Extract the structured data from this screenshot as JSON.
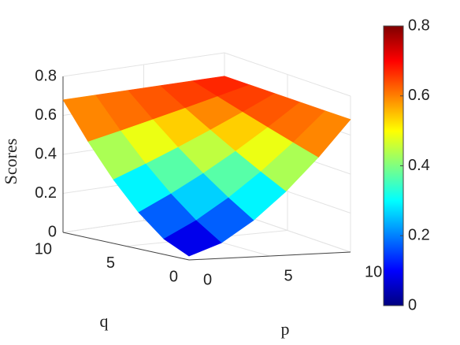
{
  "chart_data": {
    "type": "surface",
    "zlabel": "Scores",
    "xlabel": "p",
    "ylabel": "q",
    "x": [
      0,
      2,
      4,
      6,
      8,
      10
    ],
    "y": [
      0,
      2,
      4,
      6,
      8,
      10
    ],
    "z": [
      [
        0.02,
        0.079,
        0.187,
        0.327,
        0.493,
        0.68
      ],
      [
        0.079,
        0.163,
        0.268,
        0.39,
        0.528,
        0.68
      ],
      [
        0.187,
        0.268,
        0.358,
        0.457,
        0.565,
        0.68
      ],
      [
        0.327,
        0.39,
        0.457,
        0.528,
        0.602,
        0.68
      ],
      [
        0.493,
        0.528,
        0.565,
        0.602,
        0.641,
        0.68
      ],
      [
        0.68,
        0.68,
        0.68,
        0.68,
        0.68,
        0.68
      ]
    ],
    "xlim": [
      0,
      10
    ],
    "ylim": [
      0,
      10
    ],
    "zlim": [
      0,
      0.8
    ],
    "xticks": [
      0,
      5,
      10
    ],
    "yticks": [
      0,
      5,
      10
    ],
    "zticks": [
      0,
      0.2,
      0.4,
      0.6,
      0.8
    ],
    "colormap": "jet",
    "grid": true,
    "colorbar": {
      "clim": [
        0,
        0.8
      ],
      "ticks": [
        0,
        0.2,
        0.4,
        0.6,
        0.8
      ]
    }
  }
}
